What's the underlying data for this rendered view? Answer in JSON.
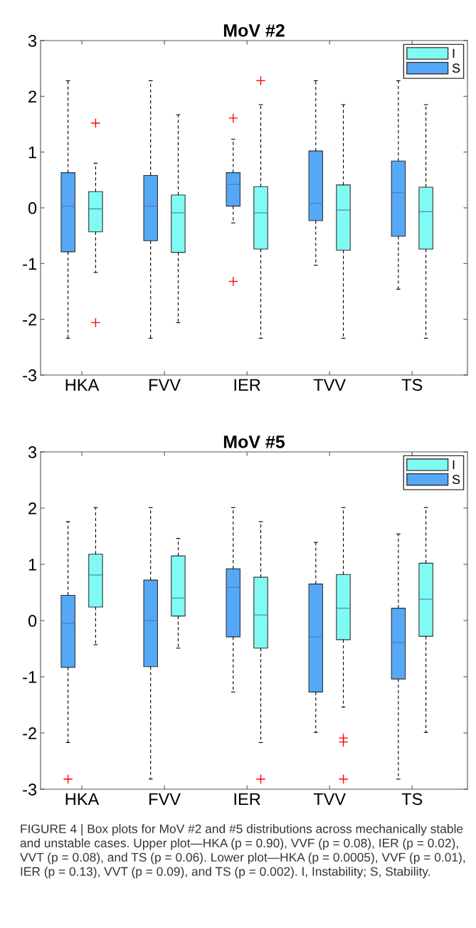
{
  "chart_data": [
    {
      "type": "box",
      "title": "MoV #2",
      "categories": [
        "HKA",
        "FVV",
        "IER",
        "TVV",
        "TS"
      ],
      "ylim": [
        -3,
        3
      ],
      "yticks": [
        -3,
        -2,
        -1,
        0,
        1,
        2,
        3
      ],
      "legend": "top right",
      "grid": false,
      "series": [
        {
          "name": "S",
          "color": "#55a8f7",
          "boxes": [
            {
              "low": -2.34,
              "q1": -0.79,
              "median": 0.03,
              "q3": 0.63,
              "high": 2.28
            },
            {
              "low": -2.34,
              "q1": -0.59,
              "median": 0.03,
              "q3": 0.58,
              "high": 2.28
            },
            {
              "low": -0.27,
              "q1": 0.03,
              "median": 0.42,
              "q3": 0.63,
              "high": 1.23,
              "outliers": [
                1.61,
                -1.32
              ]
            },
            {
              "low": -1.03,
              "q1": -0.23,
              "median": 0.08,
              "q3": 1.02,
              "high": 2.28
            },
            {
              "low": -1.46,
              "q1": -0.51,
              "median": 0.27,
              "q3": 0.84,
              "high": 2.28
            }
          ]
        },
        {
          "name": "I",
          "color": "#80fbf4",
          "boxes": [
            {
              "low": -1.16,
              "q1": -0.43,
              "median": -0.02,
              "q3": 0.29,
              "high": 0.8,
              "outliers": [
                1.52,
                -2.06
              ]
            },
            {
              "low": -2.06,
              "q1": -0.8,
              "median": -0.09,
              "q3": 0.23,
              "high": 1.67
            },
            {
              "low": -2.34,
              "q1": -0.74,
              "median": -0.09,
              "q3": 0.38,
              "high": 1.85,
              "outliers": [
                2.28
              ]
            },
            {
              "low": -2.34,
              "q1": -0.76,
              "median": -0.04,
              "q3": 0.41,
              "high": 1.85
            },
            {
              "low": -2.34,
              "q1": -0.74,
              "median": -0.07,
              "q3": 0.37,
              "high": 1.85
            }
          ]
        }
      ]
    },
    {
      "type": "box",
      "title": "MoV #5",
      "categories": [
        "HKA",
        "FVV",
        "IER",
        "TVV",
        "TS"
      ],
      "ylim": [
        -3,
        3
      ],
      "yticks": [
        -3,
        -2,
        -1,
        0,
        1,
        2,
        3
      ],
      "legend": "top right",
      "grid": false,
      "annotations": [
        "FIGURE 4 | Box plots for MoV #2 and #5 distributions across mechanically stable and unstable cases. Upper plot—HKA (p = 0.90), VVF (p = 0.08), IER (p = 0.02), VVT (p = 0.08), and TS (p = 0.06). Lower plot—HKA (p = 0.0005), VVF (p = 0.01), IER (p = 0.13), VVT (p = 0.09), and TS (p = 0.002). I, Instability; S, Stability."
      ],
      "series": [
        {
          "name": "S",
          "color": "#55a8f7",
          "boxes": [
            {
              "low": -2.17,
              "q1": -0.83,
              "median": -0.05,
              "q3": 0.45,
              "high": 1.76,
              "outliers": [
                -2.82
              ]
            },
            {
              "low": -2.82,
              "q1": -0.82,
              "median": 0.0,
              "q3": 0.72,
              "high": 2.01
            },
            {
              "low": -1.27,
              "q1": -0.29,
              "median": 0.59,
              "q3": 0.92,
              "high": 2.01
            },
            {
              "low": -1.99,
              "q1": -1.27,
              "median": -0.29,
              "q3": 0.65,
              "high": 1.39
            },
            {
              "low": -2.82,
              "q1": -1.04,
              "median": -0.39,
              "q3": 0.22,
              "high": 1.54
            }
          ]
        },
        {
          "name": "I",
          "color": "#80fbf4",
          "boxes": [
            {
              "low": -0.43,
              "q1": 0.24,
              "median": 0.81,
              "q3": 1.18,
              "high": 2.01
            },
            {
              "low": -0.49,
              "q1": 0.08,
              "median": 0.4,
              "q3": 1.15,
              "high": 1.46
            },
            {
              "low": -2.17,
              "q1": -0.49,
              "median": 0.1,
              "q3": 0.77,
              "high": 1.76,
              "outliers": [
                -2.82
              ]
            },
            {
              "low": -1.54,
              "q1": -0.34,
              "median": 0.22,
              "q3": 0.82,
              "high": 2.01,
              "outliers": [
                -2.09,
                -2.16,
                -2.82
              ]
            },
            {
              "low": -1.99,
              "q1": -0.28,
              "median": 0.38,
              "q3": 1.02,
              "high": 2.01
            }
          ]
        }
      ]
    }
  ]
}
